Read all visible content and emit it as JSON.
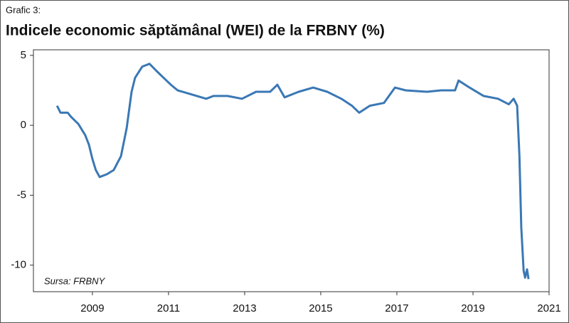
{
  "chart_data": {
    "type": "line",
    "label": "Grafic 3:",
    "title": "Indicele economic săptămânal (WEI) de la FRBNY (%)",
    "annotation": "Sursa: FRBNY",
    "xlim": [
      2007.45,
      2021
    ],
    "xticks": [
      2009,
      2011,
      2013,
      2015,
      2017,
      2019,
      2021
    ],
    "ylim": [
      -11.9,
      5.4
    ],
    "yticks": [
      5,
      0,
      -5,
      -10
    ],
    "series": [
      {
        "name": "WEI",
        "color": "#3a78b4",
        "x": [
          2008.07,
          2008.16,
          2008.35,
          2008.44,
          2008.63,
          2008.81,
          2008.91,
          2009.0,
          2009.09,
          2009.19,
          2009.38,
          2009.56,
          2009.75,
          2009.9,
          2010.03,
          2010.12,
          2010.31,
          2010.5,
          2010.68,
          2010.87,
          2011.06,
          2011.24,
          2011.62,
          2011.99,
          2012.18,
          2012.55,
          2012.93,
          2013.3,
          2013.67,
          2013.86,
          2014.05,
          2014.42,
          2014.8,
          2015.17,
          2015.54,
          2015.82,
          2016.01,
          2016.29,
          2016.66,
          2016.95,
          2017.23,
          2017.79,
          2018.16,
          2018.53,
          2018.62,
          2018.91,
          2019.28,
          2019.66,
          2019.94,
          2020.07,
          2020.16,
          2020.22,
          2020.27,
          2020.33,
          2020.37,
          2020.42,
          2020.46
        ],
        "values": [
          1.4,
          0.9,
          0.9,
          0.6,
          0.1,
          -0.7,
          -1.4,
          -2.4,
          -3.2,
          -3.7,
          -3.5,
          -3.2,
          -2.2,
          -0.2,
          2.4,
          3.4,
          4.2,
          4.4,
          3.9,
          3.4,
          2.9,
          2.5,
          2.2,
          1.9,
          2.1,
          2.1,
          1.9,
          2.4,
          2.4,
          2.9,
          2.0,
          2.4,
          2.7,
          2.4,
          1.9,
          1.4,
          0.9,
          1.4,
          1.6,
          2.7,
          2.5,
          2.4,
          2.5,
          2.5,
          3.2,
          2.7,
          2.1,
          1.9,
          1.5,
          1.9,
          1.4,
          -2.2,
          -7.3,
          -10.4,
          -10.9,
          -10.3,
          -11.0
        ]
      }
    ]
  }
}
